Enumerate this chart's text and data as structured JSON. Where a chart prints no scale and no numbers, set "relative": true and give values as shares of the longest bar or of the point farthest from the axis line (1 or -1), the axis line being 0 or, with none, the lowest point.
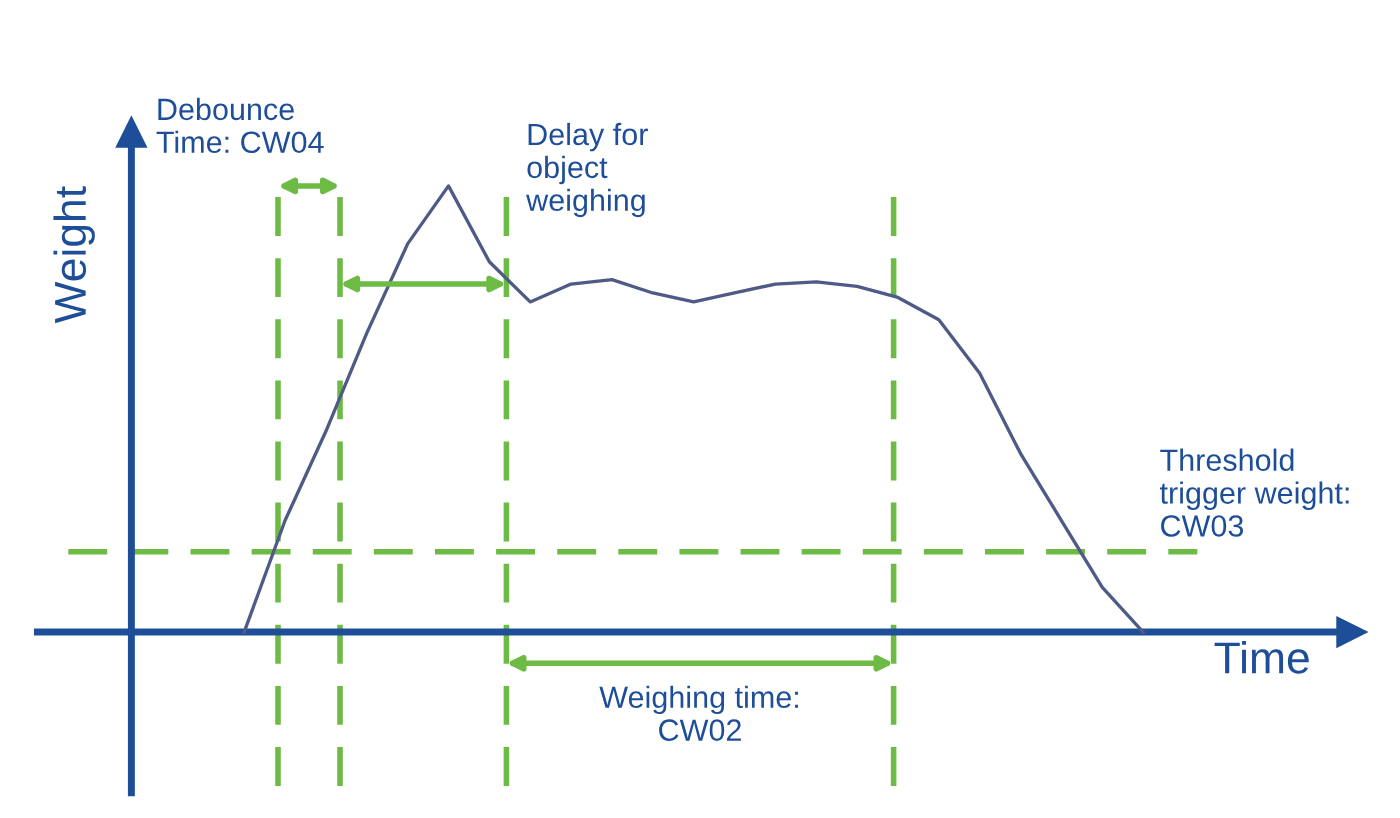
{
  "chart_data": {
    "type": "line",
    "relative": true,
    "xlabel": "Time",
    "ylabel": "Weight",
    "categories": [
      null,
      null,
      null,
      null,
      null,
      null,
      null,
      null,
      null,
      null,
      null,
      null,
      null,
      null,
      null,
      null,
      null,
      null,
      null,
      null,
      null,
      null,
      null
    ],
    "series": [
      {
        "color": "#4f5b86",
        "values": [
          0,
          0.25,
          0.45,
          0.67,
          0.87,
          1,
          0.83,
          0.74,
          0.78,
          0.79,
          0.76,
          0.74,
          0.76,
          0.78,
          0.785,
          0.775,
          0.75,
          0.7,
          0.58,
          0.4,
          0.25,
          0.1,
          0
        ]
      }
    ],
    "ref_lines": [
      {
        "axis": "y",
        "value": 0.18,
        "color": "#6dbb45",
        "line_style": "dashed",
        "label": "Threshold\ntrigger weight:\nCW03"
      }
    ],
    "annotations": [
      "Debounce\nTime: CW04",
      "Delay for\nobject\nweighing",
      "Weighing time:\nCW02"
    ]
  }
}
